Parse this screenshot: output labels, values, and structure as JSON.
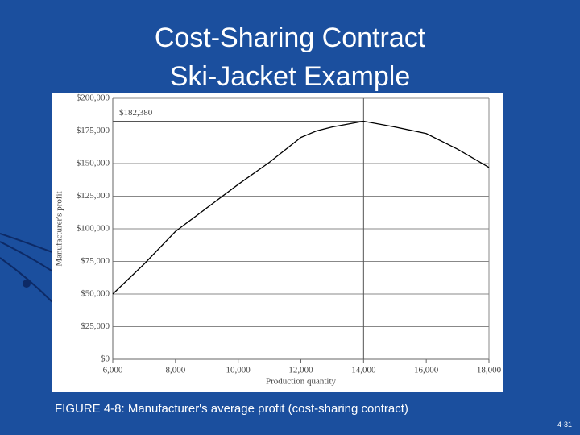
{
  "slide": {
    "title_lines": [
      "Cost-Sharing Contract",
      "Ski-Jacket Example"
    ],
    "caption": "FIGURE 4-8: Manufacturer's average profit (cost-sharing contract)",
    "slide_number": "4-31"
  },
  "chart_data": {
    "type": "line",
    "x_label": "Production quantity",
    "y_label": "Manufacturer's profit",
    "x": [
      6000,
      7000,
      8000,
      9000,
      10000,
      11000,
      12000,
      12500,
      13000,
      14000,
      15000,
      16000,
      17000,
      18000
    ],
    "series": [
      {
        "name": "Manufacturer's profit",
        "color": "#000000",
        "values": [
          50000,
          73000,
          98000,
          116000,
          134000,
          151000,
          170000,
          175000,
          178000,
          182380,
          178000,
          173000,
          161000,
          147000
        ]
      }
    ],
    "annotations": [
      {
        "x": 14000,
        "y": 182380,
        "label": "$182,380"
      }
    ],
    "xlim": [
      6000,
      18000
    ],
    "xticks": [
      {
        "value": 6000,
        "label": "6,000"
      },
      {
        "value": 8000,
        "label": "8,000"
      },
      {
        "value": 10000,
        "label": "10,000"
      },
      {
        "value": 12000,
        "label": "12,000"
      },
      {
        "value": 14000,
        "label": "14,000"
      },
      {
        "value": 16000,
        "label": "16,000"
      },
      {
        "value": 18000,
        "label": "18,000"
      }
    ],
    "ylim": [
      0,
      200000
    ],
    "yticks": [
      {
        "value": 0,
        "label": "$0"
      },
      {
        "value": 25000,
        "label": "$25,000"
      },
      {
        "value": 50000,
        "label": "$50,000"
      },
      {
        "value": 75000,
        "label": "$75,000"
      },
      {
        "value": 100000,
        "label": "$100,000"
      },
      {
        "value": 125000,
        "label": "$125,000"
      },
      {
        "value": 150000,
        "label": "$150,000"
      },
      {
        "value": 175000,
        "label": "$175,000"
      },
      {
        "value": 200000,
        "label": "$200,000"
      }
    ],
    "grid": "y"
  }
}
